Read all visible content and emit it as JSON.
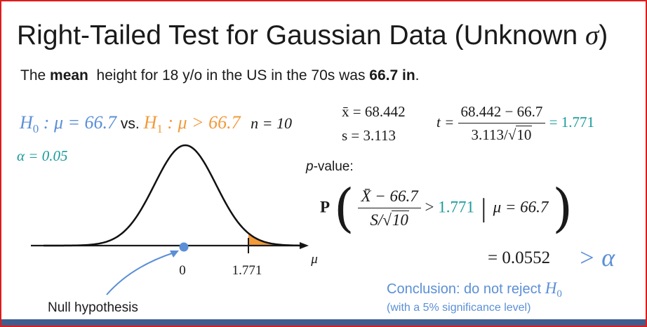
{
  "title": {
    "main": "Right-Tailed Test for Gaussian Data (Unknown ",
    "sigma": "σ",
    "close": ")"
  },
  "subtitle": {
    "pre": "The ",
    "bold1": "mean",
    "mid": "  height for 18 y/o in the US in the 70s was ",
    "bold2": "66.7 in",
    "end": "."
  },
  "hypotheses": {
    "h0_H": "H",
    "h0_sub": "0",
    "h0_rest": " : μ = 66.7",
    "vs": " vs. ",
    "h1_H": "H",
    "h1_sub": "1",
    "h1_rest": " : μ > 66.7",
    "n": "n = 10"
  },
  "alpha": "α = 0.05",
  "sample_stats": {
    "xbar": "x̄ = 68.442",
    "s": "s = 3.113"
  },
  "t_stat": {
    "lhs": "t =",
    "numerator": "68.442 − 66.7",
    "denominator_pre": "3.113/",
    "denominator_sqrt": "10",
    "result": "= 1.771"
  },
  "pvalue": {
    "label_italic": "p",
    "label_rest": "-value:",
    "P": "P",
    "lparen": "(",
    "num": "X̄ − 66.7",
    "den_pre": "S/",
    "den_sqrt": "10",
    "gt": " > ",
    "tval": "1.771",
    "bar": " | ",
    "cond": "μ = 66.7",
    "rparen": ")",
    "equals": "= 0.0552",
    "compare": "> α"
  },
  "axis": {
    "zero_label": "0",
    "t_label": "1.771",
    "mu_label": "μ"
  },
  "conclusion": {
    "text": "Conclusion: do not reject ",
    "H": "H",
    "sub": "0",
    "note": "(with a 5% significance level)"
  },
  "null_label": "Null hypothesis",
  "colors": {
    "h0_blue": "#5b8fd6",
    "h1_orange": "#f29a3a",
    "teal": "#1a9a9a",
    "tail_fill": "#f29a3a",
    "frame_red": "#e01b1b",
    "bar_navy": "#3f5e8f"
  }
}
